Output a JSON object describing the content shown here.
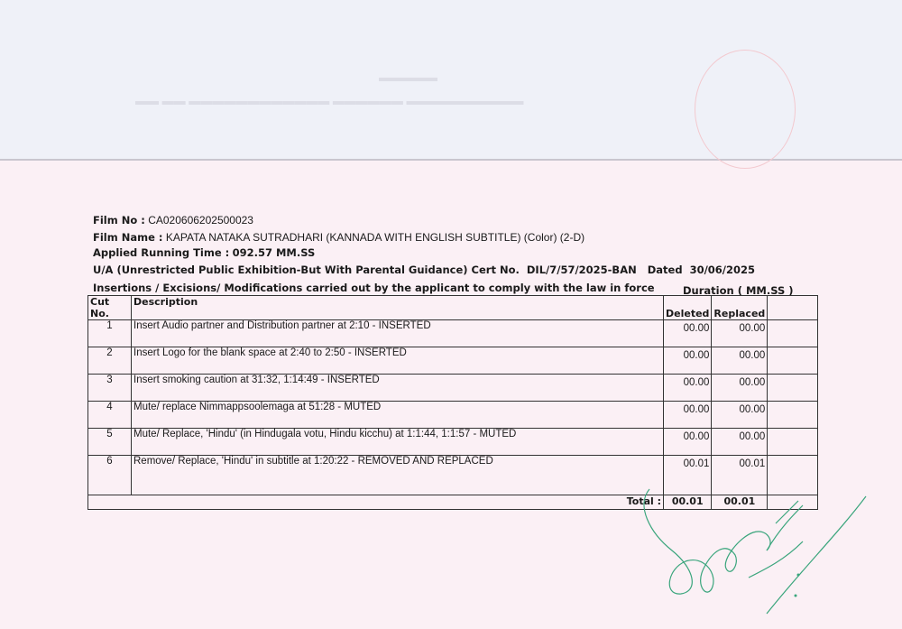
{
  "film_no": {
    "label": "Film No :",
    "value": "CA020606202500023"
  },
  "film_name": {
    "label": "Film Name :",
    "value": "KAPATA NATAKA SUTRADHARI (KANNADA WITH ENGLISH SUBTITLE) (Color) (2-D)"
  },
  "running_time": {
    "label": "Applied Running Time :",
    "value": "092.57 MM.SS"
  },
  "certificate": {
    "category": "U/A (Unrestricted Public Exhibition-But With Parental Guidance) Cert No.",
    "number": "DIL/7/57/2025-BAN",
    "dated_label": "Dated",
    "date": "30/06/2025"
  },
  "section_title": "Insertions / Excisions/ Modifications carried out by the applicant to comply with the  law in force",
  "duration_label": "Duration ( MM.SS )",
  "table": {
    "headers": [
      "Cut No.",
      "Description",
      "Deleted",
      "Replaced"
    ],
    "rows": [
      {
        "cut": "1",
        "description": "Insert Audio partner and Distribution partner at 2:10 - INSERTED",
        "deleted": "00.00",
        "replaced": "00.00"
      },
      {
        "cut": "2",
        "description": "Insert Logo for the blank space at 2:40 to 2:50 - INSERTED",
        "deleted": "00.00",
        "replaced": "00.00"
      },
      {
        "cut": "3",
        "description": "Insert smoking caution at 31:32, 1:14:49 - INSERTED",
        "deleted": "00.00",
        "replaced": "00.00"
      },
      {
        "cut": "4",
        "description": "Mute/ replace Nimmappsoolemaga at 51:28 - MUTED",
        "deleted": "00.00",
        "replaced": "00.00"
      },
      {
        "cut": "5",
        "description": "Mute/ Replace, 'Hindu' (in Hindugala votu, Hindu kicchu) at 1:1:44, 1:1:57 - MUTED",
        "deleted": "00.00",
        "replaced": "00.00"
      },
      {
        "cut": "6",
        "description": "Remove/ Replace, 'Hindu' in subtitle at 1:20:22 - REMOVED AND REPLACED",
        "deleted": "00.01",
        "replaced": "00.01"
      }
    ],
    "total": {
      "label": "Total :",
      "deleted": "00.01",
      "replaced": "00.01"
    }
  },
  "colors": {
    "paper_top": "#eff1f8",
    "paper_bottom": "#fbf0f5",
    "signature_ink": "#3aa57c"
  }
}
